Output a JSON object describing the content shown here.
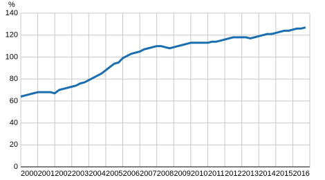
{
  "chart_data": {
    "type": "line",
    "y_label": "%",
    "x": [
      2000,
      2000.25,
      2000.5,
      2000.75,
      2001,
      2001.25,
      2001.5,
      2001.75,
      2002,
      2002.25,
      2002.5,
      2002.75,
      2003,
      2003.25,
      2003.5,
      2003.75,
      2004,
      2004.25,
      2004.5,
      2004.75,
      2005,
      2005.25,
      2005.5,
      2005.75,
      2006,
      2006.25,
      2006.5,
      2006.75,
      2007,
      2007.25,
      2007.5,
      2007.75,
      2008,
      2008.25,
      2008.5,
      2008.75,
      2009,
      2009.25,
      2009.5,
      2009.75,
      2010,
      2010.25,
      2010.5,
      2010.75,
      2011,
      2011.25,
      2011.5,
      2011.75,
      2012,
      2012.25,
      2012.5,
      2012.75,
      2013,
      2013.25,
      2013.5,
      2013.75,
      2014,
      2014.25,
      2014.5,
      2014.75,
      2015,
      2015.25,
      2015.5,
      2015.75,
      2016,
      2016.25,
      2016.5,
      2016.75
    ],
    "series": [
      {
        "color": "#1a6eb0",
        "values": [
          64,
          65,
          66,
          67,
          68,
          68,
          68,
          68,
          67,
          70,
          71,
          72,
          73,
          74,
          76,
          77,
          79,
          81,
          83,
          85,
          88,
          91,
          94,
          95,
          99,
          101,
          103,
          104,
          105,
          107,
          108,
          109,
          110,
          110,
          109,
          108,
          109,
          110,
          111,
          112,
          113,
          113,
          113,
          113,
          113,
          114,
          114,
          115,
          116,
          117,
          118,
          118,
          118,
          118,
          117,
          118,
          119,
          120,
          121,
          121,
          122,
          123,
          124,
          124,
          125,
          126,
          126,
          127
        ]
      }
    ],
    "xlim": [
      2000,
      2017
    ],
    "xticks": [
      2000,
      2001,
      2002,
      2003,
      2004,
      2005,
      2006,
      2007,
      2008,
      2009,
      2010,
      2011,
      2012,
      2013,
      2014,
      2015,
      2016
    ],
    "ylim": [
      0,
      140
    ],
    "yticks": [
      0,
      20,
      40,
      60,
      80,
      100,
      120,
      140
    ],
    "grid": true
  }
}
